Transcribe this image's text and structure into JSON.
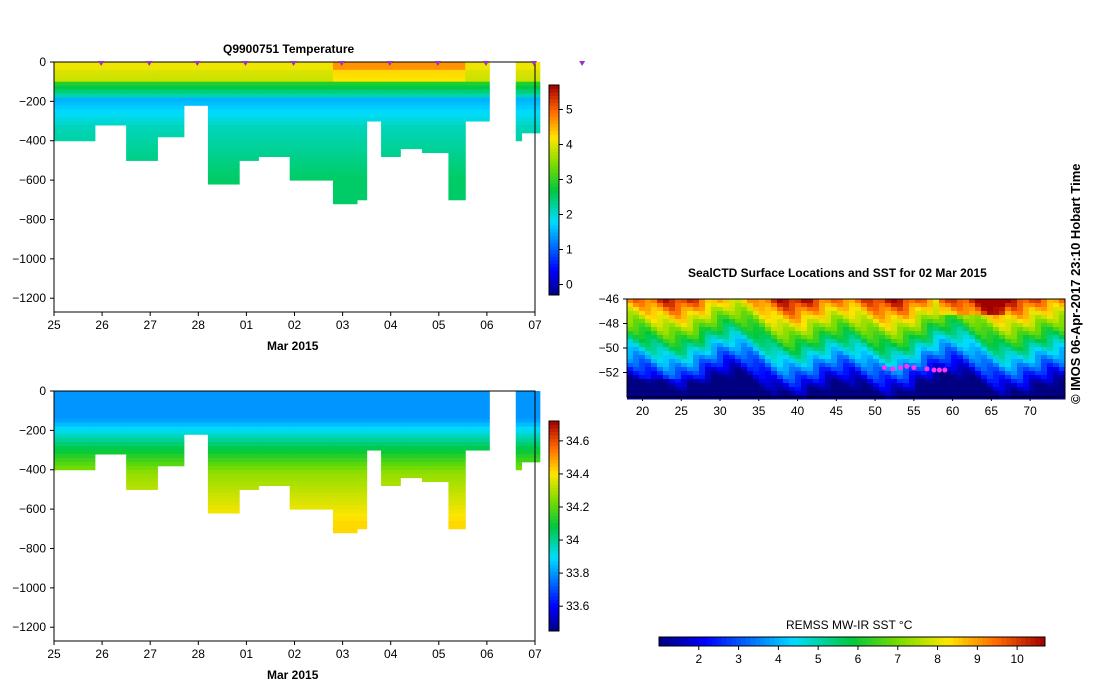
{
  "stamp": "© IMOS 06-Apr-2017 23:10 Hobart Time",
  "chart_data": [
    {
      "id": "temperature-section",
      "type": "heatmap",
      "title": "Q9900751  Temperature",
      "xlabel": "Mar 2015",
      "ylabel": "",
      "x_tick_labels": [
        "25",
        "26",
        "27",
        "28",
        "01",
        "02",
        "03",
        "04",
        "05",
        "06",
        "07"
      ],
      "y_ticks": [
        0,
        -200,
        -400,
        -600,
        -800,
        -1000,
        -1200
      ],
      "ylim": [
        -1270,
        0
      ],
      "colorbar_ticks": [
        0,
        1,
        2,
        3,
        4,
        5
      ],
      "colorbar_range": [
        -0.3,
        5.7
      ],
      "profile_markers_days": [
        1,
        2,
        3,
        4,
        5,
        6,
        7,
        8,
        9,
        10,
        11
      ],
      "profiles": [
        {
          "start": 0.0,
          "end": 0.85,
          "depth": 400
        },
        {
          "start": 0.85,
          "end": 1.5,
          "depth": 320
        },
        {
          "start": 1.5,
          "end": 2.15,
          "depth": 500
        },
        {
          "start": 2.15,
          "end": 2.7,
          "depth": 380
        },
        {
          "start": 2.7,
          "end": 3.2,
          "depth": 210
        },
        {
          "start": 3.2,
          "end": 3.85,
          "depth": 620
        },
        {
          "start": 3.85,
          "end": 4.25,
          "depth": 500
        },
        {
          "start": 4.25,
          "end": 4.9,
          "depth": 480
        },
        {
          "start": 4.9,
          "end": 5.8,
          "depth": 590
        },
        {
          "start": 5.8,
          "end": 6.3,
          "depth": 710
        },
        {
          "start": 6.3,
          "end": 6.5,
          "depth": 690
        },
        {
          "start": 6.5,
          "end": 6.8,
          "depth": 300
        },
        {
          "start": 6.8,
          "end": 7.2,
          "depth": 470
        },
        {
          "start": 7.2,
          "end": 7.65,
          "depth": 430
        },
        {
          "start": 7.65,
          "end": 8.2,
          "depth": 455
        },
        {
          "start": 8.2,
          "end": 8.55,
          "depth": 700
        },
        {
          "start": 8.55,
          "end": 9.05,
          "depth": 300
        },
        {
          "start": 9.6,
          "end": 9.72,
          "depth": 400
        },
        {
          "start": 9.72,
          "end": 10.1,
          "depth": 360
        }
      ]
    },
    {
      "id": "salinity-section",
      "type": "heatmap",
      "title": "",
      "xlabel": "Mar 2015",
      "ylabel": "",
      "x_tick_labels": [
        "25",
        "26",
        "27",
        "28",
        "01",
        "02",
        "03",
        "04",
        "05",
        "06",
        "07"
      ],
      "y_ticks": [
        0,
        -200,
        -400,
        -600,
        -800,
        -1000,
        -1200
      ],
      "ylim": [
        -1270,
        0
      ],
      "colorbar_ticks": [
        33.6,
        33.8,
        34,
        34.2,
        34.4,
        34.6
      ],
      "colorbar_tick_labels": [
        "33.6",
        "33.8",
        "34",
        "34.2",
        "34.4",
        "34.6"
      ],
      "colorbar_range": [
        33.45,
        34.72
      ],
      "profiles": [
        {
          "start": 0.0,
          "end": 0.85,
          "depth": 400
        },
        {
          "start": 0.85,
          "end": 1.5,
          "depth": 320
        },
        {
          "start": 1.5,
          "end": 2.15,
          "depth": 500
        },
        {
          "start": 2.15,
          "end": 2.7,
          "depth": 380
        },
        {
          "start": 2.7,
          "end": 3.2,
          "depth": 210
        },
        {
          "start": 3.2,
          "end": 3.85,
          "depth": 620
        },
        {
          "start": 3.85,
          "end": 4.25,
          "depth": 500
        },
        {
          "start": 4.25,
          "end": 4.9,
          "depth": 480
        },
        {
          "start": 4.9,
          "end": 5.8,
          "depth": 590
        },
        {
          "start": 5.8,
          "end": 6.3,
          "depth": 710
        },
        {
          "start": 6.3,
          "end": 6.5,
          "depth": 690
        },
        {
          "start": 6.5,
          "end": 6.8,
          "depth": 300
        },
        {
          "start": 6.8,
          "end": 7.2,
          "depth": 470
        },
        {
          "start": 7.2,
          "end": 7.65,
          "depth": 430
        },
        {
          "start": 7.65,
          "end": 8.2,
          "depth": 455
        },
        {
          "start": 8.2,
          "end": 8.55,
          "depth": 700
        },
        {
          "start": 8.55,
          "end": 9.05,
          "depth": 300
        },
        {
          "start": 9.6,
          "end": 9.72,
          "depth": 400
        },
        {
          "start": 9.72,
          "end": 10.1,
          "depth": 360
        }
      ]
    },
    {
      "id": "sst-map",
      "type": "heatmap",
      "title": "SealCTD Surface Locations and SST for 02 Mar 2015",
      "x_ticks": [
        20,
        25,
        30,
        35,
        40,
        45,
        50,
        55,
        60,
        65,
        70
      ],
      "y_ticks": [
        -46,
        -48,
        -50,
        -52
      ],
      "xlim": [
        18,
        74.5
      ],
      "ylim": [
        -54,
        -46
      ],
      "colorbar_label": "REMSS MW-IR SST °C",
      "colorbar_ticks": [
        2,
        3,
        4,
        5,
        6,
        7,
        8,
        9,
        10
      ],
      "colorbar_range": [
        1,
        10.7
      ],
      "tag_locations": [
        [
          51.2,
          -51.6
        ],
        [
          52.3,
          -51.7
        ],
        [
          53.3,
          -51.6
        ],
        [
          54.1,
          -51.5
        ],
        [
          55.0,
          -51.6
        ],
        [
          56.7,
          -51.7
        ],
        [
          57.6,
          -51.8
        ],
        [
          58.3,
          -51.8
        ],
        [
          59.0,
          -51.8
        ]
      ]
    }
  ]
}
